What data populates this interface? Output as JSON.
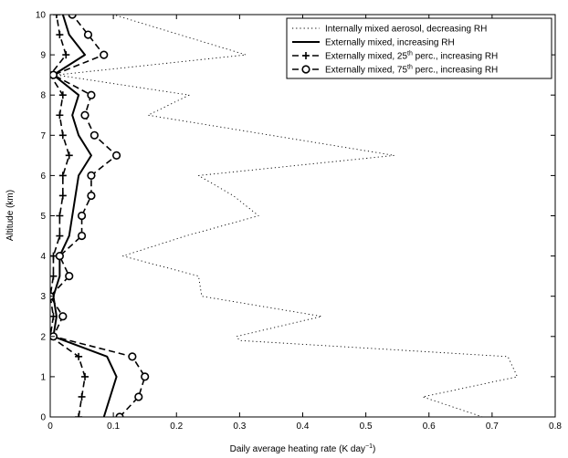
{
  "chart_data": {
    "type": "line",
    "title": "",
    "xlabel": "Daily average heating rate (K day−1)",
    "ylabel": "Altitude (km)",
    "xlim": [
      0,
      0.8
    ],
    "ylim": [
      0,
      10
    ],
    "x_ticks": [
      "0",
      "0.1",
      "0.2",
      "0.3",
      "0.4",
      "0.5",
      "0.6",
      "0.7",
      "0.8"
    ],
    "y_ticks": [
      "0",
      "1",
      "2",
      "3",
      "4",
      "5",
      "6",
      "7",
      "8",
      "9",
      "10"
    ],
    "grid": false,
    "legend_position": "top-right",
    "series": [
      {
        "name": "Internally mixed aerosol, decreasing RH",
        "style": "dotted",
        "color": "#000000",
        "points": [
          {
            "x": 0.685,
            "y": 0.0
          },
          {
            "x": 0.59,
            "y": 0.5
          },
          {
            "x": 0.74,
            "y": 1.0
          },
          {
            "x": 0.725,
            "y": 1.5
          },
          {
            "x": 0.3,
            "y": 1.9
          },
          {
            "x": 0.295,
            "y": 2.0
          },
          {
            "x": 0.43,
            "y": 2.5
          },
          {
            "x": 0.24,
            "y": 3.0
          },
          {
            "x": 0.235,
            "y": 3.5
          },
          {
            "x": 0.115,
            "y": 4.0
          },
          {
            "x": 0.215,
            "y": 4.5
          },
          {
            "x": 0.33,
            "y": 5.0
          },
          {
            "x": 0.29,
            "y": 5.5
          },
          {
            "x": 0.235,
            "y": 6.0
          },
          {
            "x": 0.545,
            "y": 6.5
          },
          {
            "x": 0.155,
            "y": 7.5
          },
          {
            "x": 0.22,
            "y": 8.0
          },
          {
            "x": 0.01,
            "y": 8.5
          },
          {
            "x": 0.31,
            "y": 9.0
          },
          {
            "x": 0.1,
            "y": 10.0
          }
        ]
      },
      {
        "name": "Externally mixed, increasing RH",
        "style": "solid",
        "color": "#000000",
        "points": [
          {
            "x": 0.085,
            "y": 0.0
          },
          {
            "x": 0.095,
            "y": 0.5
          },
          {
            "x": 0.105,
            "y": 1.0
          },
          {
            "x": 0.09,
            "y": 1.5
          },
          {
            "x": 0.005,
            "y": 2.0
          },
          {
            "x": 0.01,
            "y": 2.5
          },
          {
            "x": 0.005,
            "y": 3.0
          },
          {
            "x": 0.015,
            "y": 3.5
          },
          {
            "x": 0.015,
            "y": 4.0
          },
          {
            "x": 0.03,
            "y": 4.5
          },
          {
            "x": 0.035,
            "y": 5.0
          },
          {
            "x": 0.04,
            "y": 5.5
          },
          {
            "x": 0.045,
            "y": 6.0
          },
          {
            "x": 0.065,
            "y": 6.5
          },
          {
            "x": 0.045,
            "y": 7.0
          },
          {
            "x": 0.035,
            "y": 7.5
          },
          {
            "x": 0.045,
            "y": 8.0
          },
          {
            "x": 0.005,
            "y": 8.5
          },
          {
            "x": 0.055,
            "y": 9.0
          },
          {
            "x": 0.03,
            "y": 9.5
          },
          {
            "x": 0.02,
            "y": 10.0
          }
        ]
      },
      {
        "name": "Externally mixed, 25th perc., increasing RH",
        "legend_parts": [
          "Externally mixed, 25",
          "th",
          " perc., increasing RH"
        ],
        "style": "dashed",
        "marker": "plus",
        "color": "#000000",
        "points": [
          {
            "x": 0.045,
            "y": 0.0
          },
          {
            "x": 0.05,
            "y": 0.5
          },
          {
            "x": 0.055,
            "y": 1.0
          },
          {
            "x": 0.045,
            "y": 1.5
          },
          {
            "x": 0.0,
            "y": 2.0
          },
          {
            "x": 0.005,
            "y": 2.5
          },
          {
            "x": 0.0,
            "y": 3.0
          },
          {
            "x": 0.005,
            "y": 3.5
          },
          {
            "x": 0.005,
            "y": 4.0
          },
          {
            "x": 0.015,
            "y": 4.5
          },
          {
            "x": 0.015,
            "y": 5.0
          },
          {
            "x": 0.02,
            "y": 5.5
          },
          {
            "x": 0.02,
            "y": 6.0
          },
          {
            "x": 0.03,
            "y": 6.5
          },
          {
            "x": 0.02,
            "y": 7.0
          },
          {
            "x": 0.015,
            "y": 7.5
          },
          {
            "x": 0.02,
            "y": 8.0
          },
          {
            "x": 0.0,
            "y": 8.5
          },
          {
            "x": 0.025,
            "y": 9.0
          },
          {
            "x": 0.015,
            "y": 9.5
          },
          {
            "x": 0.01,
            "y": 10.0
          }
        ]
      },
      {
        "name": "Externally mixed, 75th perc., increasing RH",
        "legend_parts": [
          "Externally mixed, 75",
          "th",
          " perc., increasing RH"
        ],
        "style": "dashed",
        "marker": "circle",
        "color": "#000000",
        "points": [
          {
            "x": 0.11,
            "y": 0.0
          },
          {
            "x": 0.14,
            "y": 0.5
          },
          {
            "x": 0.15,
            "y": 1.0
          },
          {
            "x": 0.13,
            "y": 1.5
          },
          {
            "x": 0.005,
            "y": 2.0
          },
          {
            "x": 0.02,
            "y": 2.5
          },
          {
            "x": 0.0,
            "y": 3.0
          },
          {
            "x": 0.03,
            "y": 3.5
          },
          {
            "x": 0.015,
            "y": 4.0
          },
          {
            "x": 0.05,
            "y": 4.5
          },
          {
            "x": 0.05,
            "y": 5.0
          },
          {
            "x": 0.065,
            "y": 5.5
          },
          {
            "x": 0.065,
            "y": 6.0
          },
          {
            "x": 0.105,
            "y": 6.5
          },
          {
            "x": 0.07,
            "y": 7.0
          },
          {
            "x": 0.055,
            "y": 7.5
          },
          {
            "x": 0.065,
            "y": 8.0
          },
          {
            "x": 0.005,
            "y": 8.5
          },
          {
            "x": 0.085,
            "y": 9.0
          },
          {
            "x": 0.06,
            "y": 9.5
          },
          {
            "x": 0.035,
            "y": 10.0
          }
        ]
      }
    ]
  }
}
